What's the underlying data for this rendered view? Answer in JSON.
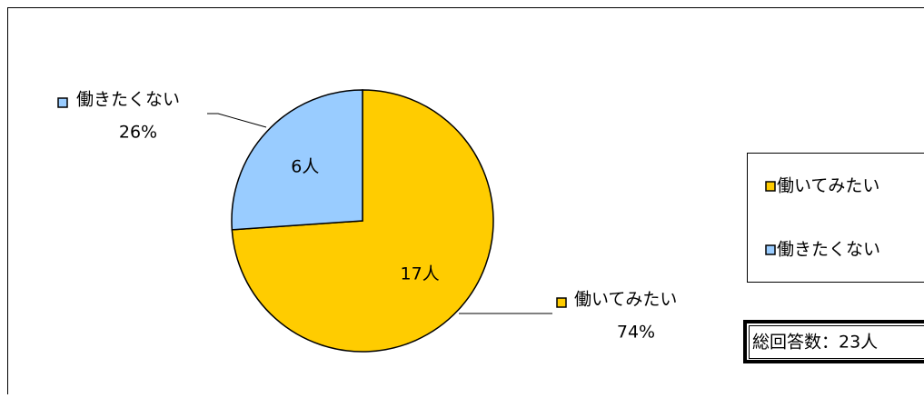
{
  "chart_data": {
    "type": "pie",
    "categories": [
      "働いてみたい",
      "働きたくない"
    ],
    "values": [
      17,
      6
    ],
    "value_labels": [
      "17人",
      "6人"
    ],
    "percents": [
      74,
      26
    ],
    "percent_labels": [
      "74%",
      "26%"
    ],
    "colors": [
      "#ffcc00",
      "#99ccff"
    ],
    "annotation": "総回答数：23人",
    "legend": "right"
  }
}
